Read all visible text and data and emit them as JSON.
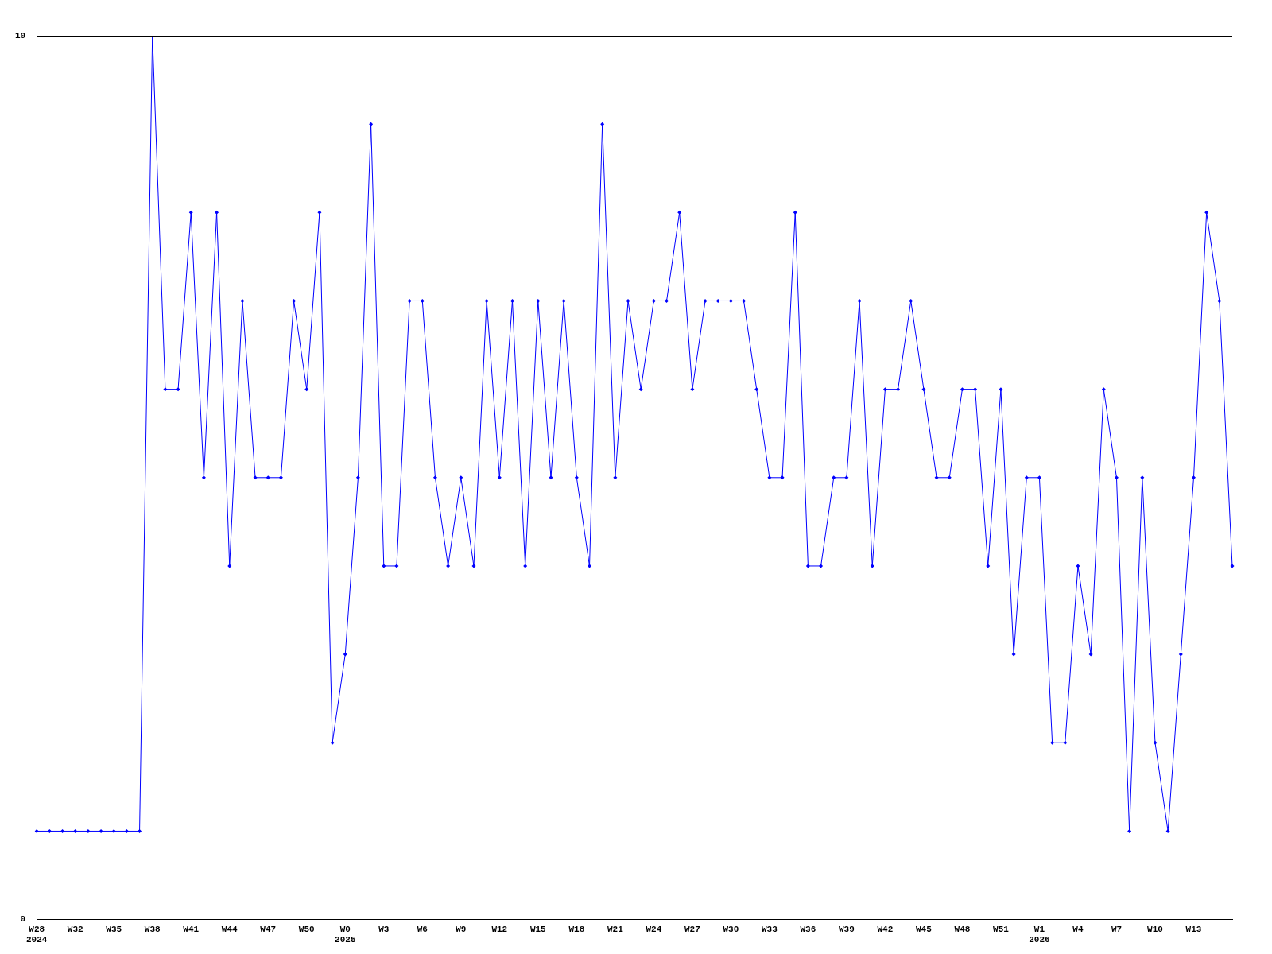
{
  "chart_data": {
    "type": "line",
    "categories": [
      "W28\n2024",
      null,
      null,
      "W32",
      null,
      null,
      "W35",
      null,
      null,
      "W38",
      null,
      null,
      "W41",
      null,
      null,
      "W44",
      null,
      null,
      "W47",
      null,
      null,
      "W50",
      null,
      null,
      "W0\n2025",
      null,
      null,
      "W3",
      null,
      null,
      "W6",
      null,
      null,
      "W9",
      null,
      null,
      "W12",
      null,
      null,
      "W15",
      null,
      null,
      "W18",
      null,
      null,
      "W21",
      null,
      null,
      "W24",
      null,
      null,
      "W27",
      null,
      null,
      "W30",
      null,
      null,
      "W33",
      null,
      null,
      "W36",
      null,
      null,
      "W39",
      null,
      null,
      "W42",
      null,
      null,
      "W45",
      null,
      null,
      "W48",
      null,
      null,
      "W51",
      null,
      null,
      "W1\n2026",
      null,
      null,
      "W4",
      null,
      null,
      "W7",
      null,
      null,
      "W10",
      null,
      null,
      "W13",
      null,
      null,
      null
    ],
    "series": [
      {
        "color": "#0000ff",
        "values": [
          1,
          1,
          1,
          1,
          1,
          1,
          1,
          1,
          1,
          10,
          6,
          6,
          8,
          5,
          8,
          4,
          7,
          5,
          5,
          5,
          7,
          6,
          8,
          2,
          3,
          5,
          9,
          4,
          4,
          7,
          7,
          5,
          4,
          5,
          4,
          7,
          5,
          7,
          4,
          7,
          5,
          7,
          5,
          4,
          9,
          5,
          7,
          6,
          7,
          7,
          8,
          6,
          7,
          7,
          7,
          7,
          6,
          5,
          5,
          8,
          4,
          4,
          5,
          5,
          7,
          4,
          6,
          6,
          7,
          6,
          5,
          5,
          6,
          6,
          4,
          6,
          3,
          5,
          5,
          2,
          2,
          4,
          3,
          6,
          5,
          1,
          5,
          2,
          1,
          3,
          5,
          8,
          7,
          4
        ]
      }
    ],
    "ylim": [
      0,
      10
    ],
    "yticks": [
      0,
      10
    ],
    "grid": false,
    "legend": false,
    "marker": "diamond",
    "line_style": "solid"
  }
}
